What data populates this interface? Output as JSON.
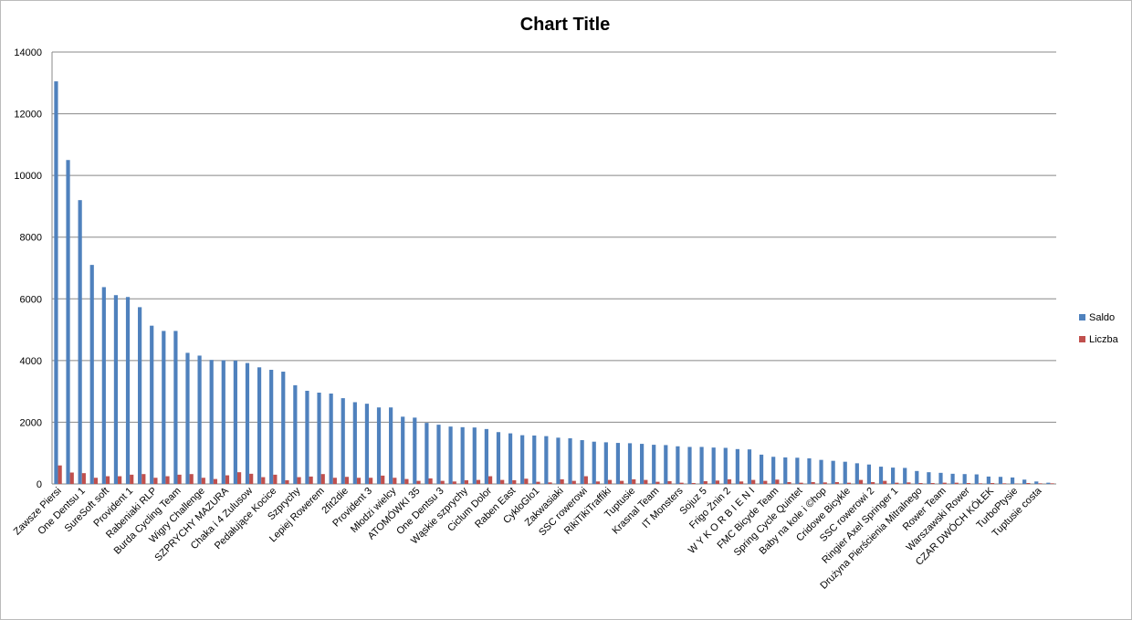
{
  "chart_data": {
    "type": "bar",
    "title": "Chart Title",
    "categories": [
      "Zawsze Piersi",
      null,
      "One Dentsu 1",
      null,
      "SureSoft soft",
      null,
      "Provident 1",
      null,
      "Rabeniaki RLP",
      null,
      "Burda Cycling Team",
      null,
      "Wigry Challenge",
      null,
      "SZPRYCHY MAZURA",
      null,
      "Chaka i 4 Zulusow",
      null,
      "Pedałujące Kocice",
      null,
      "Szprychy",
      null,
      "Lepiej Rowerem",
      null,
      "2fit2die",
      null,
      "Provident 3",
      null,
      "Młodzi wielcy",
      null,
      "ATOMÓWKI 35",
      null,
      "One Dentsu 3",
      null,
      "Wąskie szprychy",
      null,
      "Ciclum Dolor",
      null,
      "Raben East",
      null,
      "CykloGlo1",
      null,
      "Zakwasiaki",
      null,
      "SSC rowerowi",
      null,
      "RikiTikiTraffiki",
      null,
      "Tuptusie",
      null,
      "Krasnal Team",
      null,
      "IT Monsters",
      null,
      "Sojuz 5",
      null,
      "Frigo Żnin 2",
      null,
      "W Y K O R B I E N I",
      null,
      "FMC Bicyde Team",
      null,
      "Spring Cycle Quintet",
      null,
      "Baby na kole i ©hop",
      null,
      "Cridowe Bicykle",
      null,
      "SSC rowerowi 2",
      null,
      "Ringier Axel Springer 1",
      null,
      "Drużyna Pierścienia Mitralnego",
      null,
      "Rower Team",
      null,
      "Warszawski Rower",
      null,
      "CZAR DWÓCH KÓŁEK",
      null,
      "TurboPtysie",
      null,
      "Tuptusie costa",
      null
    ],
    "series": [
      {
        "name": "Saldo",
        "color": "#4f81bd",
        "values": [
          13050,
          10500,
          9200,
          7100,
          6380,
          6120,
          6060,
          5730,
          5130,
          4960,
          4960,
          4250,
          4160,
          4020,
          4010,
          4000,
          3920,
          3780,
          3700,
          3640,
          3200,
          3020,
          2960,
          2930,
          2780,
          2650,
          2600,
          2480,
          2480,
          2180,
          2150,
          1980,
          1920,
          1860,
          1840,
          1830,
          1780,
          1680,
          1640,
          1580,
          1570,
          1550,
          1500,
          1480,
          1420,
          1370,
          1350,
          1330,
          1320,
          1300,
          1270,
          1260,
          1220,
          1200,
          1200,
          1180,
          1170,
          1130,
          1120,
          950,
          880,
          860,
          850,
          830,
          780,
          750,
          720,
          670,
          630,
          560,
          530,
          520,
          420,
          380,
          360,
          330,
          320,
          310,
          240,
          230,
          210,
          140,
          80,
          40
        ]
      },
      {
        "name": "Liczba",
        "color": "#c0504d",
        "values": [
          600,
          370,
          350,
          200,
          250,
          250,
          300,
          320,
          200,
          250,
          300,
          320,
          200,
          160,
          280,
          380,
          330,
          220,
          300,
          120,
          220,
          240,
          320,
          200,
          230,
          200,
          200,
          270,
          200,
          160,
          100,
          180,
          100,
          80,
          120,
          130,
          250,
          130,
          120,
          170,
          70,
          50,
          150,
          100,
          250,
          80,
          130,
          100,
          150,
          130,
          70,
          90,
          40,
          30,
          90,
          110,
          150,
          80,
          130,
          100,
          140,
          60,
          40,
          60,
          50,
          60,
          40,
          130,
          60,
          100,
          40,
          50,
          30,
          30,
          40,
          40,
          30,
          20,
          30,
          20,
          10,
          30,
          20,
          20
        ]
      }
    ],
    "ylim": [
      0,
      14000
    ],
    "yticks": [
      0,
      2000,
      4000,
      6000,
      8000,
      10000,
      12000,
      14000
    ],
    "grid": true,
    "legend": "right"
  }
}
